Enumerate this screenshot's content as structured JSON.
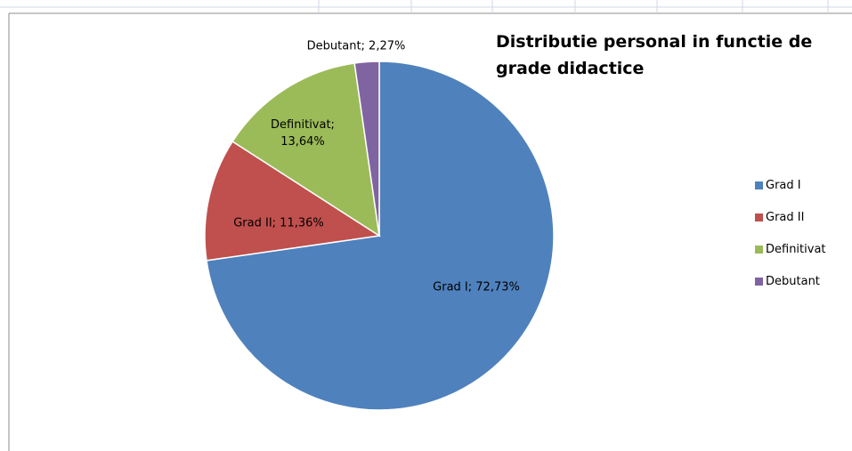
{
  "chart_data": {
    "type": "pie",
    "title": "Distributie personal in functie de grade didactice",
    "categories": [
      "Grad I",
      "Grad II",
      "Definitivat",
      "Debutant"
    ],
    "values": [
      72.73,
      11.36,
      13.64,
      2.27
    ],
    "value_labels": [
      "Grad I; 72,73%",
      "Grad II; 11,36%",
      "Definitivat; 13,64%",
      "Debutant; 2,27%"
    ],
    "colors": [
      "#4f81bd",
      "#c0504d",
      "#9bbb59",
      "#8064a2"
    ],
    "legend": "right"
  }
}
